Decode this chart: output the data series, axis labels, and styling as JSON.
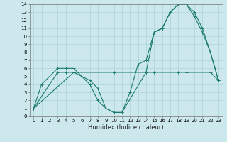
{
  "xlabel": "Humidex (Indice chaleur)",
  "bg_color": "#cce8ec",
  "grid_color": "#aad4d8",
  "line_color": "#1a7a6e",
  "xlim": [
    -0.5,
    23.5
  ],
  "ylim": [
    0,
    14
  ],
  "xticks": [
    0,
    1,
    2,
    3,
    4,
    5,
    6,
    7,
    8,
    9,
    10,
    11,
    12,
    13,
    14,
    15,
    16,
    17,
    18,
    19,
    20,
    21,
    22,
    23
  ],
  "yticks": [
    0,
    1,
    2,
    3,
    4,
    5,
    6,
    7,
    8,
    9,
    10,
    11,
    12,
    13,
    14
  ],
  "line1_x": [
    0,
    1,
    2,
    3,
    4,
    5,
    6,
    7,
    8,
    9,
    10,
    11,
    12,
    13,
    14,
    15,
    16,
    17,
    18,
    19,
    20,
    21,
    22,
    23
  ],
  "line1_y": [
    1,
    4,
    5,
    6,
    6,
    6,
    5,
    4,
    2,
    1,
    0.5,
    0.5,
    3,
    6.5,
    7,
    10.5,
    11,
    13,
    14,
    14,
    13,
    11,
    8,
    4.5
  ],
  "line2_x": [
    0,
    3,
    4,
    5,
    6,
    7,
    8,
    9,
    10,
    11,
    14,
    15,
    18,
    19,
    22,
    23
  ],
  "line2_y": [
    1,
    5.5,
    5.5,
    5.5,
    5,
    4.5,
    3.5,
    1,
    0.5,
    0.5,
    5.5,
    5.5,
    5.5,
    5.5,
    5.5,
    4.5
  ],
  "line3_x": [
    0,
    5,
    10,
    14,
    15,
    16,
    17,
    18,
    19,
    20,
    21,
    22,
    23
  ],
  "line3_y": [
    1,
    5.5,
    5.5,
    5.5,
    10.5,
    11,
    13,
    14,
    14,
    12.5,
    10.5,
    8,
    4.5
  ],
  "xlabel_fontsize": 6,
  "tick_fontsize": 5
}
